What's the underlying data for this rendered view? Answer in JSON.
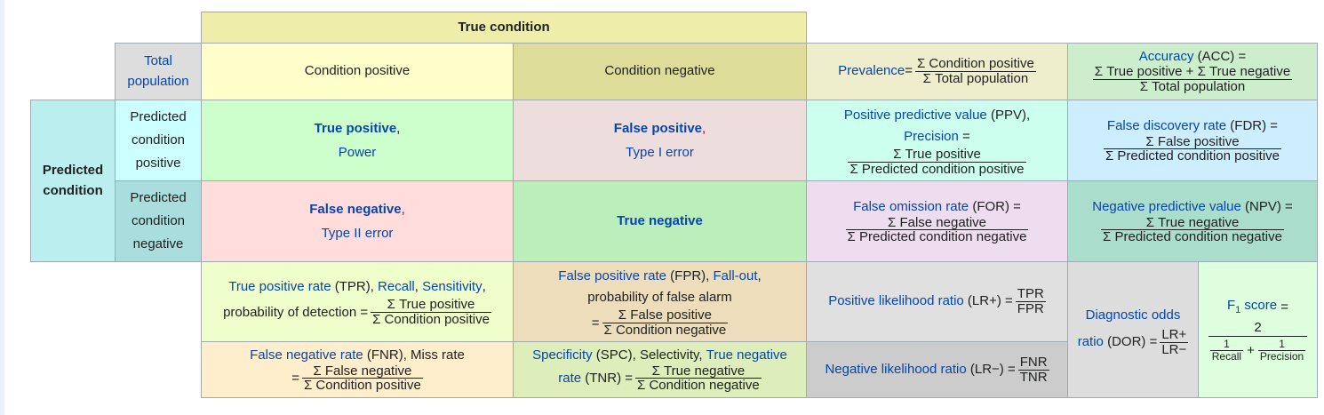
{
  "header": {
    "true_condition": "True condition",
    "total_population_1": "Total",
    "total_population_2": "population",
    "condition_positive": "Condition positive",
    "condition_negative": "Condition negative",
    "predicted_condition_1": "Predicted",
    "predicted_condition_2": "condition",
    "pred_pos_1": "Predicted",
    "pred_pos_2": "condition",
    "pred_pos_3": "positive",
    "pred_neg_1": "Predicted",
    "pred_neg_2": "condition",
    "pred_neg_3": "negative"
  },
  "cells": {
    "tp_title": "True positive",
    "tp_comma": ",",
    "tp_sub": "Power",
    "fp_title": "False positive",
    "fp_comma": ",",
    "fp_sub": "Type I error",
    "fn_title": "False negative",
    "fn_comma": ",",
    "fn_sub": "Type II error",
    "tn_title": "True negative"
  },
  "prevalence": {
    "label": "Prevalence",
    "eq": " =",
    "num": "Σ Condition positive",
    "den": "Σ Total population"
  },
  "accuracy": {
    "link": "Accuracy",
    "rest": " (ACC) =",
    "num": "Σ True positive + Σ True negative",
    "den": "Σ Total population"
  },
  "ppv": {
    "link1": "Positive predictive value",
    "rest1": " (PPV),",
    "link2": "Precision",
    "rest2": " =",
    "num": "Σ True positive",
    "den": "Σ Predicted condition positive"
  },
  "fdr": {
    "link": "False discovery rate",
    "rest": " (FDR) =",
    "num": "Σ False positive",
    "den": "Σ Predicted condition positive"
  },
  "for": {
    "link": "False omission rate",
    "rest": " (FOR) =",
    "num": "Σ False negative",
    "den": "Σ Predicted condition negative"
  },
  "npv": {
    "link": "Negative predictive value",
    "rest": " (NPV) =",
    "num": "Σ True negative",
    "den": "Σ Predicted condition negative"
  },
  "tpr": {
    "link1": "True positive rate",
    "rest1": " (TPR), ",
    "link2": "Recall",
    "sep": ", ",
    "link3": "Sensitivity",
    "comma": ",",
    "line2": "probability of detection =",
    "num": "Σ True positive",
    "den": "Σ Condition positive"
  },
  "fpr": {
    "link1": "False positive rate",
    "rest1": " (FPR), ",
    "link2": "Fall-out",
    "comma": ",",
    "line2": "probability of false alarm",
    "eq": "=",
    "num": "Σ False positive",
    "den": "Σ Condition negative"
  },
  "lrp": {
    "link": "Positive likelihood ratio",
    "rest": " (LR+) =",
    "num": "TPR",
    "den": "FPR"
  },
  "lrn": {
    "link": "Negative likelihood ratio",
    "rest": " (LR−) =",
    "num": "FNR",
    "den": "TNR"
  },
  "dor": {
    "link": "Diagnostic odds",
    "link2": "ratio",
    "rest": " (DOR) =",
    "num": "LR+",
    "den": "LR−"
  },
  "f1": {
    "link": "F",
    "sub": "1",
    "link2": " score",
    "rest": " =",
    "num": "2",
    "r_num": "1",
    "r_den": "Recall",
    "plus": "+",
    "p_num": "1",
    "p_den": "Precision"
  },
  "fnr": {
    "link": "False negative rate",
    "rest": " (FNR), Miss rate",
    "eq": "=",
    "num": "Σ False negative",
    "den": "Σ Condition positive"
  },
  "spc": {
    "link1": "Specificity",
    "rest1": " (SPC), Selectivity, ",
    "link2": "True negative",
    "link3": "rate",
    "rest2": " (TNR) =",
    "num": "Σ True negative",
    "den": "Σ Condition negative"
  },
  "colors": {
    "true_condition": "#eeeeaa",
    "total_pop": "#dddddd",
    "cond_pos": "#ffffcc",
    "cond_neg": "#dddd99",
    "predicted": "#bbeeee",
    "pred_pos": "#ccffff",
    "pred_neg": "#aadddd",
    "tp": "#ccffcc",
    "fp": "#eedddd",
    "fn": "#ffdddd",
    "tn": "#bbeebb",
    "prevalence": "#eeeecc",
    "accuracy": "#cceecc",
    "ppv": "#ccffee",
    "fdr": "#cceeff",
    "for": "#eeddee",
    "npv": "#aaddcc",
    "tpr": "#eeffcc",
    "fpr": "#eeddbb",
    "lrp": "#e0e0e0",
    "lrn": "#cccccc",
    "dor": "#dddddd",
    "f1": "#ddffdd",
    "fnr": "#ffeecc",
    "spc": "#ddeebb"
  }
}
